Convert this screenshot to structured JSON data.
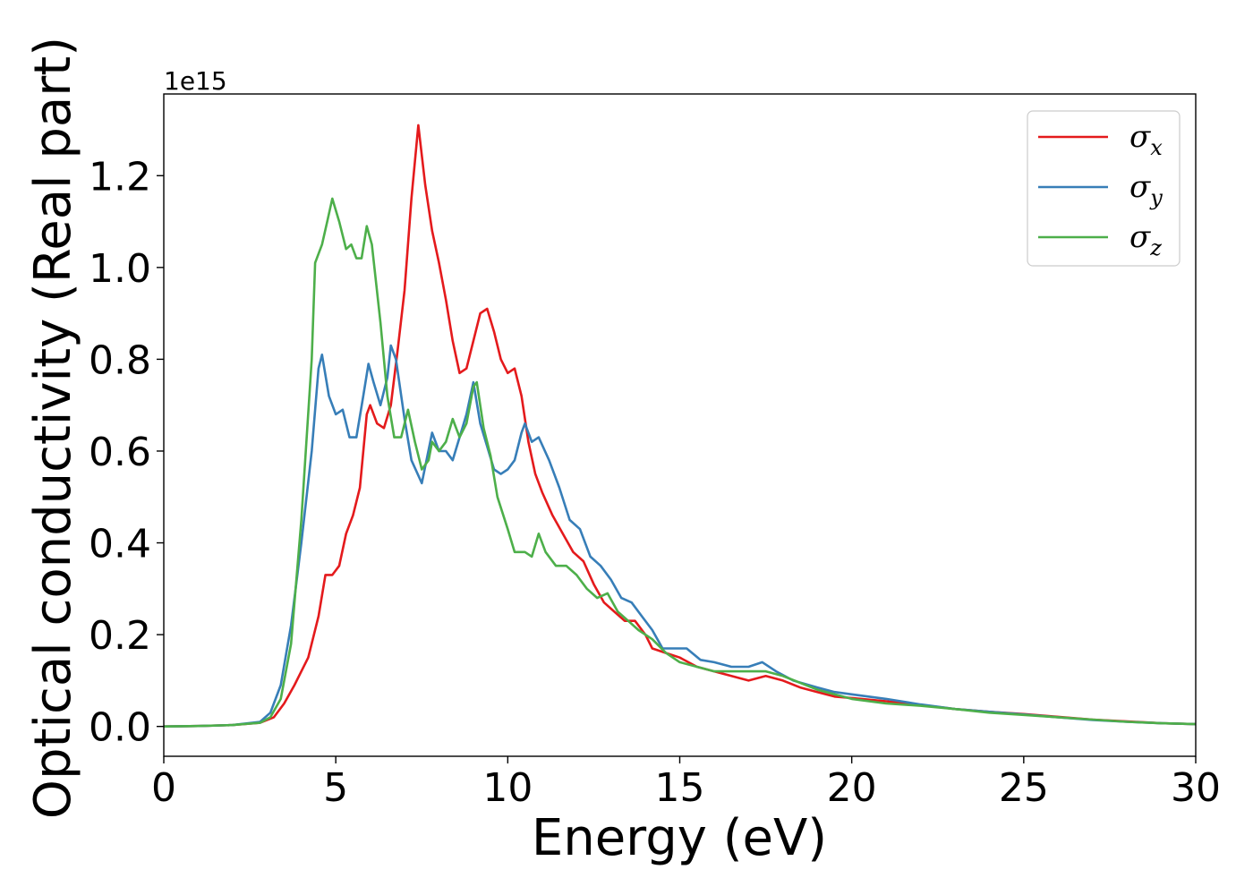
{
  "chart_data": {
    "type": "line",
    "xlabel": "Energy (eV)",
    "ylabel": "Optical conductivity (Real part)",
    "y_offset_label": "1e15",
    "xlim": [
      0,
      30
    ],
    "ylim": [
      -0.065,
      1.378
    ],
    "x_ticks": [
      "0",
      "5",
      "10",
      "15",
      "20",
      "25",
      "30"
    ],
    "y_ticks": [
      "0.0",
      "0.2",
      "0.4",
      "0.6",
      "0.8",
      "1.0",
      "1.2"
    ],
    "grid": false,
    "legend_position": "top-right",
    "series": [
      {
        "name": "σx",
        "symbol": "σ",
        "sub": "x",
        "color": "#e41a1c",
        "points": [
          [
            0,
            0
          ],
          [
            1,
            0.001
          ],
          [
            2,
            0.003
          ],
          [
            2.8,
            0.008
          ],
          [
            3.2,
            0.02
          ],
          [
            3.5,
            0.05
          ],
          [
            3.8,
            0.09
          ],
          [
            4.0,
            0.12
          ],
          [
            4.2,
            0.15
          ],
          [
            4.5,
            0.24
          ],
          [
            4.7,
            0.33
          ],
          [
            4.9,
            0.33
          ],
          [
            5.1,
            0.35
          ],
          [
            5.3,
            0.42
          ],
          [
            5.5,
            0.46
          ],
          [
            5.7,
            0.52
          ],
          [
            5.9,
            0.68
          ],
          [
            6.0,
            0.7
          ],
          [
            6.2,
            0.66
          ],
          [
            6.4,
            0.65
          ],
          [
            6.6,
            0.7
          ],
          [
            6.8,
            0.82
          ],
          [
            7.0,
            0.95
          ],
          [
            7.2,
            1.15
          ],
          [
            7.4,
            1.31
          ],
          [
            7.6,
            1.18
          ],
          [
            7.8,
            1.08
          ],
          [
            8.0,
            1.01
          ],
          [
            8.2,
            0.93
          ],
          [
            8.4,
            0.84
          ],
          [
            8.6,
            0.77
          ],
          [
            8.8,
            0.78
          ],
          [
            9.0,
            0.84
          ],
          [
            9.2,
            0.9
          ],
          [
            9.4,
            0.91
          ],
          [
            9.6,
            0.86
          ],
          [
            9.8,
            0.8
          ],
          [
            10.0,
            0.77
          ],
          [
            10.2,
            0.78
          ],
          [
            10.4,
            0.72
          ],
          [
            10.6,
            0.62
          ],
          [
            10.8,
            0.55
          ],
          [
            11.0,
            0.51
          ],
          [
            11.3,
            0.46
          ],
          [
            11.6,
            0.42
          ],
          [
            11.9,
            0.38
          ],
          [
            12.2,
            0.36
          ],
          [
            12.5,
            0.31
          ],
          [
            12.8,
            0.27
          ],
          [
            13.1,
            0.25
          ],
          [
            13.4,
            0.23
          ],
          [
            13.7,
            0.23
          ],
          [
            14.0,
            0.2
          ],
          [
            14.2,
            0.17
          ],
          [
            14.6,
            0.16
          ],
          [
            15.0,
            0.15
          ],
          [
            15.5,
            0.13
          ],
          [
            16.0,
            0.12
          ],
          [
            16.5,
            0.11
          ],
          [
            17.0,
            0.1
          ],
          [
            17.5,
            0.11
          ],
          [
            18.0,
            0.1
          ],
          [
            18.5,
            0.085
          ],
          [
            19.0,
            0.075
          ],
          [
            19.5,
            0.065
          ],
          [
            20,
            0.062
          ],
          [
            21,
            0.055
          ],
          [
            22,
            0.047
          ],
          [
            23,
            0.038
          ],
          [
            24,
            0.032
          ],
          [
            25,
            0.027
          ],
          [
            26,
            0.021
          ],
          [
            27,
            0.015
          ],
          [
            28,
            0.011
          ],
          [
            29,
            0.007
          ],
          [
            30,
            0.005
          ]
        ]
      },
      {
        "name": "σy",
        "symbol": "σ",
        "sub": "y",
        "color": "#377eb8",
        "points": [
          [
            0,
            0
          ],
          [
            1,
            0.001
          ],
          [
            2,
            0.003
          ],
          [
            2.8,
            0.01
          ],
          [
            3.1,
            0.03
          ],
          [
            3.4,
            0.09
          ],
          [
            3.7,
            0.22
          ],
          [
            4.0,
            0.4
          ],
          [
            4.3,
            0.6
          ],
          [
            4.5,
            0.78
          ],
          [
            4.6,
            0.81
          ],
          [
            4.8,
            0.72
          ],
          [
            5.0,
            0.68
          ],
          [
            5.2,
            0.69
          ],
          [
            5.4,
            0.63
          ],
          [
            5.6,
            0.63
          ],
          [
            5.8,
            0.72
          ],
          [
            5.95,
            0.79
          ],
          [
            6.1,
            0.75
          ],
          [
            6.3,
            0.7
          ],
          [
            6.5,
            0.76
          ],
          [
            6.6,
            0.83
          ],
          [
            6.75,
            0.8
          ],
          [
            7.0,
            0.67
          ],
          [
            7.2,
            0.58
          ],
          [
            7.5,
            0.53
          ],
          [
            7.8,
            0.64
          ],
          [
            8.0,
            0.6
          ],
          [
            8.2,
            0.6
          ],
          [
            8.4,
            0.58
          ],
          [
            8.6,
            0.63
          ],
          [
            8.8,
            0.68
          ],
          [
            9.0,
            0.75
          ],
          [
            9.2,
            0.66
          ],
          [
            9.4,
            0.61
          ],
          [
            9.6,
            0.56
          ],
          [
            9.8,
            0.55
          ],
          [
            10.0,
            0.56
          ],
          [
            10.2,
            0.58
          ],
          [
            10.4,
            0.64
          ],
          [
            10.5,
            0.66
          ],
          [
            10.7,
            0.62
          ],
          [
            10.9,
            0.63
          ],
          [
            11.2,
            0.58
          ],
          [
            11.5,
            0.52
          ],
          [
            11.8,
            0.45
          ],
          [
            12.1,
            0.43
          ],
          [
            12.4,
            0.37
          ],
          [
            12.7,
            0.35
          ],
          [
            13.0,
            0.32
          ],
          [
            13.3,
            0.28
          ],
          [
            13.6,
            0.27
          ],
          [
            13.9,
            0.24
          ],
          [
            14.2,
            0.21
          ],
          [
            14.5,
            0.17
          ],
          [
            14.8,
            0.17
          ],
          [
            15.2,
            0.17
          ],
          [
            15.6,
            0.145
          ],
          [
            16.0,
            0.14
          ],
          [
            16.5,
            0.13
          ],
          [
            17.0,
            0.13
          ],
          [
            17.4,
            0.14
          ],
          [
            17.8,
            0.12
          ],
          [
            18.3,
            0.1
          ],
          [
            19.0,
            0.085
          ],
          [
            19.5,
            0.075
          ],
          [
            20,
            0.07
          ],
          [
            21,
            0.06
          ],
          [
            22,
            0.048
          ],
          [
            23,
            0.038
          ],
          [
            24,
            0.032
          ],
          [
            25,
            0.026
          ],
          [
            26,
            0.02
          ],
          [
            27,
            0.014
          ],
          [
            28,
            0.01
          ],
          [
            29,
            0.007
          ],
          [
            30,
            0.005
          ]
        ]
      },
      {
        "name": "σz",
        "symbol": "σ",
        "sub": "z",
        "color": "#4daf4a",
        "points": [
          [
            0,
            0
          ],
          [
            1,
            0.001
          ],
          [
            2,
            0.003
          ],
          [
            2.8,
            0.008
          ],
          [
            3.1,
            0.02
          ],
          [
            3.4,
            0.06
          ],
          [
            3.7,
            0.18
          ],
          [
            4.0,
            0.45
          ],
          [
            4.3,
            0.8
          ],
          [
            4.4,
            1.01
          ],
          [
            4.6,
            1.05
          ],
          [
            4.75,
            1.1
          ],
          [
            4.9,
            1.15
          ],
          [
            5.1,
            1.1
          ],
          [
            5.3,
            1.04
          ],
          [
            5.45,
            1.05
          ],
          [
            5.6,
            1.02
          ],
          [
            5.75,
            1.02
          ],
          [
            5.9,
            1.09
          ],
          [
            6.05,
            1.05
          ],
          [
            6.3,
            0.88
          ],
          [
            6.5,
            0.72
          ],
          [
            6.7,
            0.63
          ],
          [
            6.9,
            0.63
          ],
          [
            7.1,
            0.69
          ],
          [
            7.3,
            0.62
          ],
          [
            7.5,
            0.56
          ],
          [
            7.7,
            0.58
          ],
          [
            7.8,
            0.62
          ],
          [
            8.0,
            0.6
          ],
          [
            8.2,
            0.62
          ],
          [
            8.4,
            0.67
          ],
          [
            8.6,
            0.63
          ],
          [
            8.8,
            0.66
          ],
          [
            9.0,
            0.74
          ],
          [
            9.1,
            0.75
          ],
          [
            9.3,
            0.65
          ],
          [
            9.5,
            0.59
          ],
          [
            9.7,
            0.5
          ],
          [
            10.0,
            0.43
          ],
          [
            10.2,
            0.38
          ],
          [
            10.5,
            0.38
          ],
          [
            10.7,
            0.37
          ],
          [
            10.9,
            0.42
          ],
          [
            11.1,
            0.38
          ],
          [
            11.4,
            0.35
          ],
          [
            11.7,
            0.35
          ],
          [
            12.0,
            0.33
          ],
          [
            12.3,
            0.3
          ],
          [
            12.6,
            0.28
          ],
          [
            12.9,
            0.29
          ],
          [
            13.2,
            0.25
          ],
          [
            13.5,
            0.23
          ],
          [
            13.8,
            0.21
          ],
          [
            14.2,
            0.19
          ],
          [
            14.6,
            0.16
          ],
          [
            15.0,
            0.14
          ],
          [
            15.5,
            0.13
          ],
          [
            16.0,
            0.12
          ],
          [
            16.5,
            0.12
          ],
          [
            17.0,
            0.12
          ],
          [
            17.5,
            0.12
          ],
          [
            18.0,
            0.11
          ],
          [
            18.5,
            0.095
          ],
          [
            19.0,
            0.08
          ],
          [
            19.5,
            0.07
          ],
          [
            20,
            0.06
          ],
          [
            21,
            0.05
          ],
          [
            22,
            0.045
          ],
          [
            23,
            0.038
          ],
          [
            24,
            0.03
          ],
          [
            25,
            0.025
          ],
          [
            26,
            0.02
          ],
          [
            27,
            0.015
          ],
          [
            28,
            0.01
          ],
          [
            29,
            0.007
          ],
          [
            30,
            0.005
          ]
        ]
      }
    ]
  }
}
